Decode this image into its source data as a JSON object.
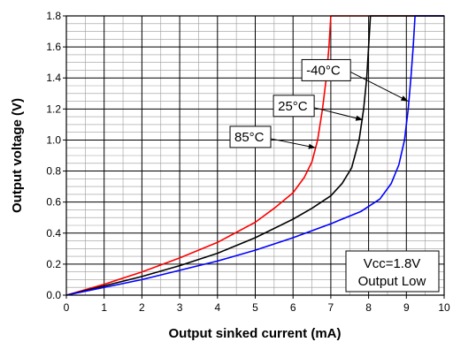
{
  "chart_data": {
    "type": "line",
    "title": "",
    "xlabel": "Output sinked current (mA)",
    "ylabel": "Output voltage (V)",
    "xlim": [
      0,
      10
    ],
    "ylim": [
      0,
      1.8
    ],
    "x_ticks": [
      0,
      1,
      2,
      3,
      4,
      5,
      6,
      7,
      8,
      9,
      10
    ],
    "y_ticks": [
      0.0,
      0.2,
      0.4,
      0.6,
      0.8,
      1.0,
      1.2,
      1.4,
      1.6,
      1.8
    ],
    "y_tick_labels": [
      "0.0",
      "0.2",
      "0.4",
      "0.6",
      "0.8",
      "1.0",
      "1.2",
      "1.4",
      "1.6",
      "1.8"
    ],
    "x_minor_step": 0.5,
    "y_minor_step": 0.05,
    "grid": true,
    "series": [
      {
        "name": "85°C",
        "color": "#ff0000",
        "points": [
          [
            0,
            0
          ],
          [
            1,
            0.07
          ],
          [
            2,
            0.15
          ],
          [
            3,
            0.24
          ],
          [
            4,
            0.34
          ],
          [
            5,
            0.47
          ],
          [
            5.5,
            0.56
          ],
          [
            6,
            0.66
          ],
          [
            6.3,
            0.76
          ],
          [
            6.5,
            0.86
          ],
          [
            6.65,
            1.0
          ],
          [
            6.78,
            1.2
          ],
          [
            6.88,
            1.4
          ],
          [
            6.95,
            1.6
          ],
          [
            7.0,
            1.8
          ],
          [
            10,
            1.8
          ]
        ]
      },
      {
        "name": "25°C",
        "color": "#000000",
        "points": [
          [
            0,
            0
          ],
          [
            1,
            0.06
          ],
          [
            2,
            0.12
          ],
          [
            3,
            0.19
          ],
          [
            4,
            0.27
          ],
          [
            5,
            0.37
          ],
          [
            6,
            0.49
          ],
          [
            6.5,
            0.56
          ],
          [
            7,
            0.64
          ],
          [
            7.3,
            0.72
          ],
          [
            7.55,
            0.82
          ],
          [
            7.75,
            1.0
          ],
          [
            7.87,
            1.2
          ],
          [
            7.95,
            1.4
          ],
          [
            8.0,
            1.6
          ],
          [
            8.05,
            1.8
          ],
          [
            10,
            1.8
          ]
        ]
      },
      {
        "name": "-40°C",
        "color": "#0000ff",
        "points": [
          [
            0,
            0
          ],
          [
            1,
            0.05
          ],
          [
            2,
            0.1
          ],
          [
            3,
            0.16
          ],
          [
            4,
            0.22
          ],
          [
            5,
            0.29
          ],
          [
            6,
            0.37
          ],
          [
            7,
            0.46
          ],
          [
            7.8,
            0.54
          ],
          [
            8.3,
            0.62
          ],
          [
            8.6,
            0.72
          ],
          [
            8.8,
            0.84
          ],
          [
            8.95,
            1.0
          ],
          [
            9.05,
            1.2
          ],
          [
            9.12,
            1.4
          ],
          [
            9.18,
            1.6
          ],
          [
            9.23,
            1.8
          ],
          [
            10,
            1.8
          ]
        ]
      }
    ],
    "annotations": [
      {
        "text": "-40°C",
        "target_x": 9.05,
        "target_y": 1.25,
        "label_x": 6.35,
        "label_y": 1.45
      },
      {
        "text": "25°C",
        "target_x": 7.85,
        "target_y": 1.13,
        "label_x": 5.6,
        "label_y": 1.22
      },
      {
        "text": "85°C",
        "target_x": 6.6,
        "target_y": 0.95,
        "label_x": 4.45,
        "label_y": 1.02
      }
    ],
    "note": [
      "Vcc=1.8V",
      "Output Low"
    ]
  }
}
